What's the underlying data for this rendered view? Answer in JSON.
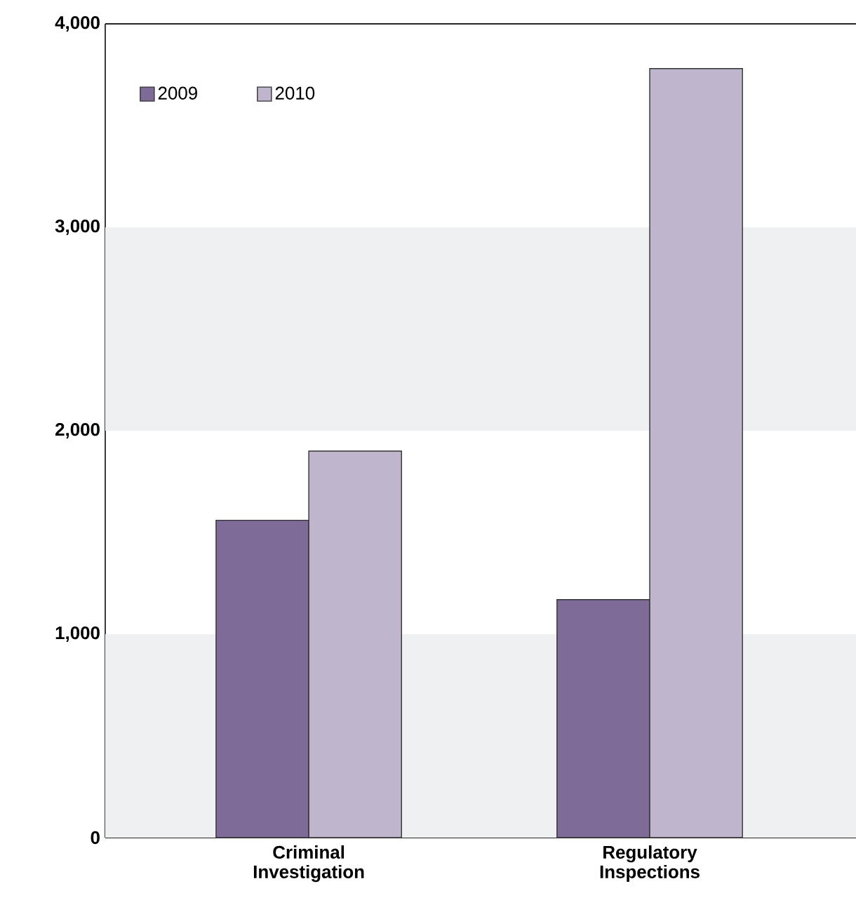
{
  "chart_data": {
    "type": "bar",
    "categories": [
      "Criminal Investigation",
      "Regulatory Inspections"
    ],
    "series": [
      {
        "name": "2009",
        "color": "#7e6b98",
        "values": [
          1560,
          1170
        ]
      },
      {
        "name": "2010",
        "color": "#bfb5cc",
        "values": [
          1900,
          3780
        ]
      }
    ],
    "ylim": [
      0,
      4000
    ],
    "yticks": [
      {
        "value": 0,
        "label": "0"
      },
      {
        "value": 1000,
        "label": "1,000"
      },
      {
        "value": 2000,
        "label": "2,000"
      },
      {
        "value": 3000,
        "label": "3,000"
      },
      {
        "value": 4000,
        "label": "4,000"
      }
    ],
    "bands": [
      {
        "axis": "y",
        "from": 0,
        "to": 1000,
        "color": "#eff0f2"
      },
      {
        "axis": "y",
        "from": 2000,
        "to": 3000,
        "color": "#eff0f2"
      }
    ],
    "legend": "top left",
    "grid": false
  }
}
